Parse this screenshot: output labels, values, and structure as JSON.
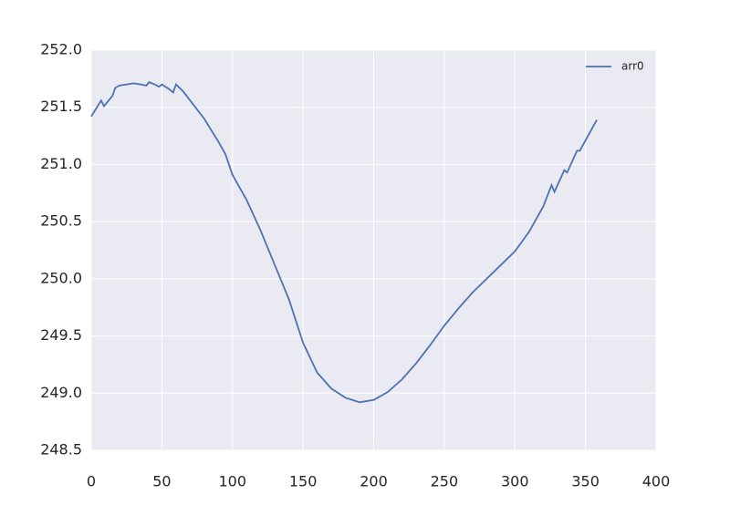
{
  "chart_data": {
    "type": "line",
    "x": [
      0,
      3,
      7,
      9,
      15,
      17,
      20,
      25,
      30,
      35,
      39,
      41,
      45,
      48,
      50,
      55,
      58,
      60,
      65,
      70,
      75,
      80,
      85,
      90,
      95,
      100,
      110,
      120,
      130,
      140,
      150,
      160,
      170,
      180,
      190,
      200,
      210,
      220,
      230,
      240,
      250,
      260,
      270,
      280,
      290,
      300,
      310,
      320,
      326,
      328,
      335,
      337,
      344,
      346,
      358
    ],
    "series": [
      {
        "name": "arr0",
        "color": "#4c72b0",
        "values": [
          251.42,
          251.48,
          251.56,
          251.51,
          251.6,
          251.67,
          251.69,
          251.7,
          251.71,
          251.7,
          251.69,
          251.72,
          251.7,
          251.68,
          251.7,
          251.66,
          251.63,
          251.7,
          251.64,
          251.56,
          251.48,
          251.4,
          251.3,
          251.2,
          251.09,
          250.91,
          250.69,
          250.42,
          250.12,
          249.82,
          249.44,
          249.18,
          249.04,
          248.96,
          248.92,
          248.94,
          249.01,
          249.12,
          249.26,
          249.42,
          249.59,
          249.74,
          249.88,
          250.0,
          250.12,
          250.24,
          250.41,
          250.63,
          250.82,
          250.76,
          250.95,
          250.93,
          251.12,
          251.12,
          251.39
        ]
      }
    ],
    "xlim": [
      0,
      400
    ],
    "xticks": [
      0,
      50,
      100,
      150,
      200,
      250,
      300,
      350,
      400
    ],
    "ylim": [
      248.5,
      252
    ],
    "yticks": [
      248.5,
      {
        "value": 249,
        "label": "249.0"
      },
      249.5,
      {
        "value": 250,
        "label": "250.0"
      },
      250.5,
      {
        "value": 251,
        "label": "251.0"
      },
      251.5,
      {
        "value": 252,
        "label": "252.0"
      }
    ],
    "grid": true,
    "legend": "upper right"
  }
}
